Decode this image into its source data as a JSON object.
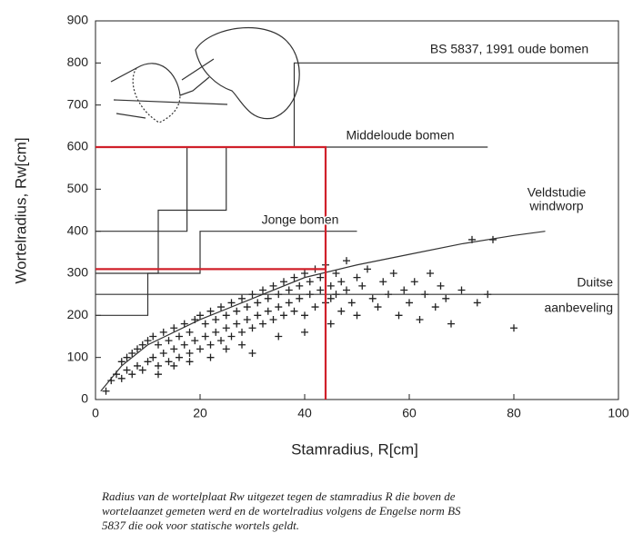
{
  "chart_data": {
    "type": "scatter",
    "xlabel": "Stamradius, R[cm]",
    "ylabel": "Wortelradius, Rw[cm]",
    "xlim": [
      0,
      100
    ],
    "xticks": [
      0,
      20,
      40,
      60,
      80,
      100
    ],
    "ylim": [
      0,
      900
    ],
    "yticks": [
      0,
      100,
      200,
      300,
      400,
      500,
      600,
      700,
      800,
      900
    ],
    "color": "#222222",
    "x": [
      2,
      3,
      4,
      5,
      5,
      6,
      6,
      7,
      7,
      8,
      8,
      9,
      9,
      10,
      10,
      11,
      11,
      12,
      12,
      13,
      13,
      14,
      14,
      15,
      15,
      16,
      16,
      17,
      17,
      18,
      18,
      19,
      19,
      20,
      20,
      21,
      21,
      22,
      22,
      23,
      23,
      24,
      24,
      25,
      25,
      26,
      26,
      27,
      27,
      28,
      28,
      29,
      29,
      30,
      30,
      31,
      31,
      32,
      32,
      33,
      33,
      34,
      34,
      35,
      35,
      36,
      36,
      37,
      37,
      38,
      38,
      39,
      39,
      40,
      40,
      41,
      41,
      42,
      42,
      43,
      43,
      44,
      44,
      45,
      45,
      46,
      46,
      47,
      47,
      48,
      48,
      49,
      50,
      50,
      51,
      52,
      53,
      54,
      55,
      56,
      57,
      58,
      59,
      60,
      61,
      62,
      63,
      64,
      65,
      66,
      67,
      68,
      70,
      72,
      73,
      75,
      76,
      80,
      12,
      15,
      18,
      22,
      25,
      28,
      30,
      35,
      40,
      45
    ],
    "values": [
      20,
      45,
      60,
      50,
      90,
      70,
      100,
      60,
      110,
      80,
      120,
      70,
      130,
      90,
      140,
      100,
      150,
      80,
      130,
      110,
      160,
      90,
      140,
      120,
      170,
      100,
      150,
      130,
      180,
      110,
      160,
      140,
      190,
      120,
      200,
      150,
      180,
      130,
      210,
      160,
      190,
      140,
      220,
      170,
      200,
      150,
      230,
      180,
      210,
      160,
      240,
      190,
      220,
      170,
      250,
      200,
      230,
      180,
      260,
      210,
      240,
      190,
      270,
      220,
      250,
      200,
      280,
      230,
      260,
      210,
      290,
      240,
      270,
      200,
      300,
      250,
      280,
      220,
      310,
      260,
      290,
      230,
      320,
      270,
      240,
      300,
      250,
      280,
      210,
      260,
      330,
      230,
      290,
      200,
      270,
      310,
      240,
      220,
      280,
      250,
      300,
      200,
      260,
      230,
      280,
      190,
      250,
      300,
      220,
      270,
      240,
      180,
      260,
      380,
      230,
      250,
      380,
      170,
      60,
      80,
      90,
      100,
      120,
      130,
      110,
      150,
      160,
      180
    ],
    "reference_lines": [
      {
        "color": "#333333",
        "x": [
          0,
          10,
          10,
          20,
          20,
          50
        ],
        "values": [
          200,
          200,
          300,
          300,
          400,
          400
        ]
      },
      {
        "color": "#333333",
        "x": [
          0,
          12,
          12,
          25,
          25,
          75
        ],
        "values": [
          300,
          300,
          450,
          450,
          600,
          600
        ]
      },
      {
        "color": "#333333",
        "x": [
          0,
          17.5,
          17.5
        ],
        "values": [
          400,
          400,
          600
        ]
      },
      {
        "color": "#333333",
        "x": [
          38,
          38,
          100
        ],
        "values": [
          600,
          800,
          800
        ]
      },
      {
        "color": "#333333",
        "x": [
          0,
          100
        ],
        "values": [
          250,
          250
        ]
      },
      {
        "color": "#333333",
        "x": [
          1,
          5,
          10,
          20,
          30,
          40,
          50,
          60,
          70,
          80,
          86
        ],
        "values": [
          20,
          80,
          130,
          190,
          240,
          290,
          320,
          345,
          370,
          390,
          400
        ]
      },
      {
        "color": "#d0202a",
        "x": [
          0,
          44,
          44
        ],
        "values": [
          600,
          600,
          0
        ]
      },
      {
        "color": "#d0202a",
        "x": [
          0,
          44
        ],
        "values": [
          310,
          310
        ]
      }
    ],
    "annotations": [
      "BS 5837, 1991 oude bomen",
      "Middeloude bomen",
      "Veldstudie",
      "windworp",
      "Jonge bomen",
      "Duitse",
      "aanbeveling"
    ],
    "caption": [
      "Radius van de wortelplaat Rw uitgezet tegen de stamradius R die boven de",
      "wortelaanzet gemeten werd en de wortelradius volgens de Engelse norm BS",
      "5837 die ook voor statische wortels geldt."
    ]
  }
}
